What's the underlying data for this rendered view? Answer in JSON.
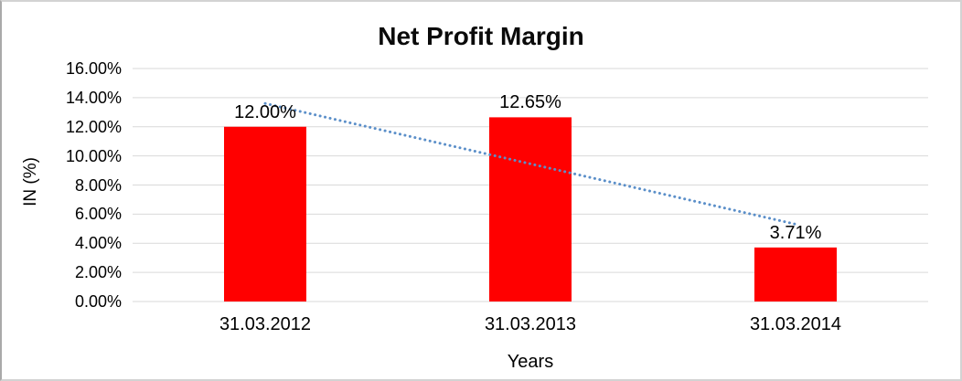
{
  "chart_data": {
    "type": "bar",
    "title": "Net Profit Margin",
    "categories": [
      "31.03.2012",
      "31.03.2013",
      "31.03.2014"
    ],
    "values": [
      12.0,
      12.65,
      3.71
    ],
    "data_labels": [
      "12.00%",
      "12.65%",
      "3.71%"
    ],
    "xlabel": "Years",
    "ylabel": "IN (%)",
    "ylim": [
      0,
      16
    ],
    "ytick_step": 2,
    "ytick_labels": [
      "0.00%",
      "2.00%",
      "4.00%",
      "6.00%",
      "8.00%",
      "10.00%",
      "12.00%",
      "14.00%",
      "16.00%"
    ],
    "grid": true,
    "legend": "none",
    "bar_color": "#FF0000",
    "trendline": {
      "type": "linear",
      "style": "dotted",
      "color": "#5B8FC9",
      "fit_endpoints": [
        13.6,
        5.31
      ]
    },
    "colors": {
      "gridline": "#D9D9D9",
      "text": "#000000",
      "frame_border": "#D3D3D3"
    }
  }
}
